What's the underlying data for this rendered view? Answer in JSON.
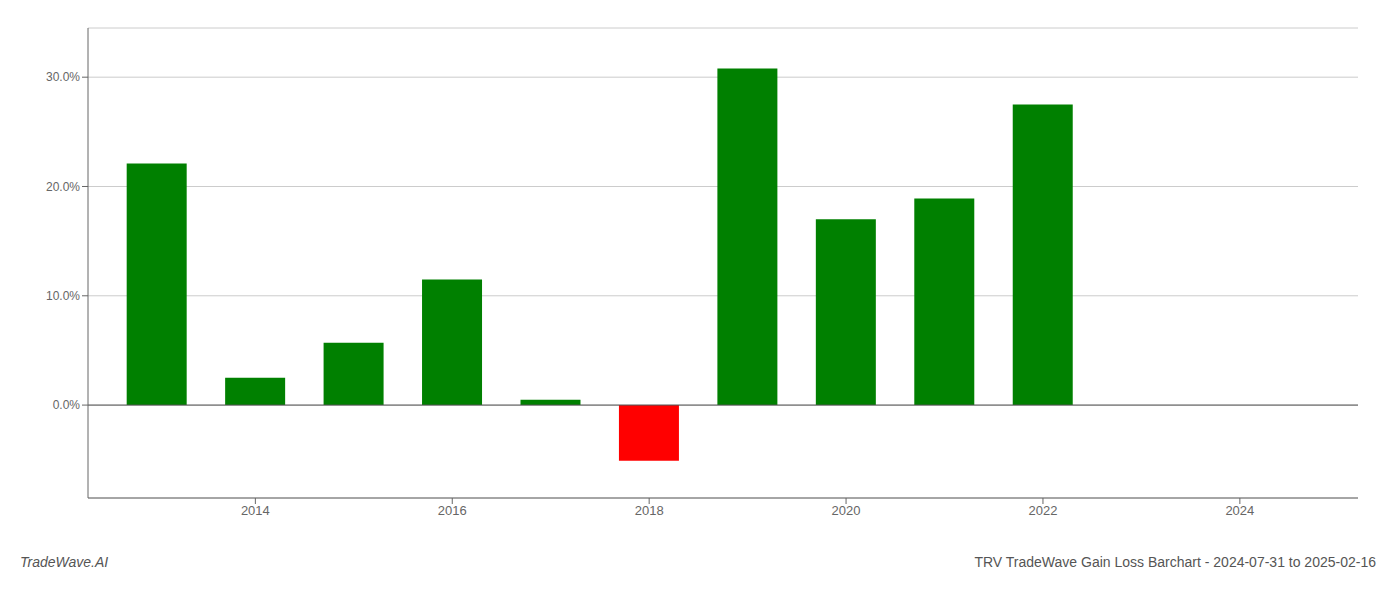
{
  "chart_data": {
    "type": "bar",
    "title": "TRV TradeWave Gain Loss Barchart - 2024-07-31 to 2025-02-16",
    "annotations": [
      "TradeWave.AI"
    ],
    "x": [
      2013,
      2014,
      2015,
      2016,
      2017,
      2018,
      2019,
      2020,
      2021,
      2022,
      2023
    ],
    "values": [
      0.221,
      0.025,
      0.057,
      0.115,
      0.005,
      -0.051,
      0.308,
      0.17,
      0.189,
      0.275,
      0.0
    ],
    "colors": [
      "#008000",
      "#008000",
      "#008000",
      "#008000",
      "#008000",
      "#ff0000",
      "#008000",
      "#008000",
      "#008000",
      "#008000",
      "#008000"
    ],
    "xlim": [
      2012.3,
      2025.2
    ],
    "xticks": [
      2014,
      2016,
      2018,
      2020,
      2022,
      2024
    ],
    "ylim": [
      -0.085,
      0.345
    ],
    "yticks": [
      {
        "value": 0.0,
        "label": "0.0%"
      },
      {
        "value": 0.1,
        "label": "10.0%"
      },
      {
        "value": 0.2,
        "label": "20.0%"
      },
      {
        "value": 0.3,
        "label": "30.0%"
      }
    ],
    "grid": true
  }
}
